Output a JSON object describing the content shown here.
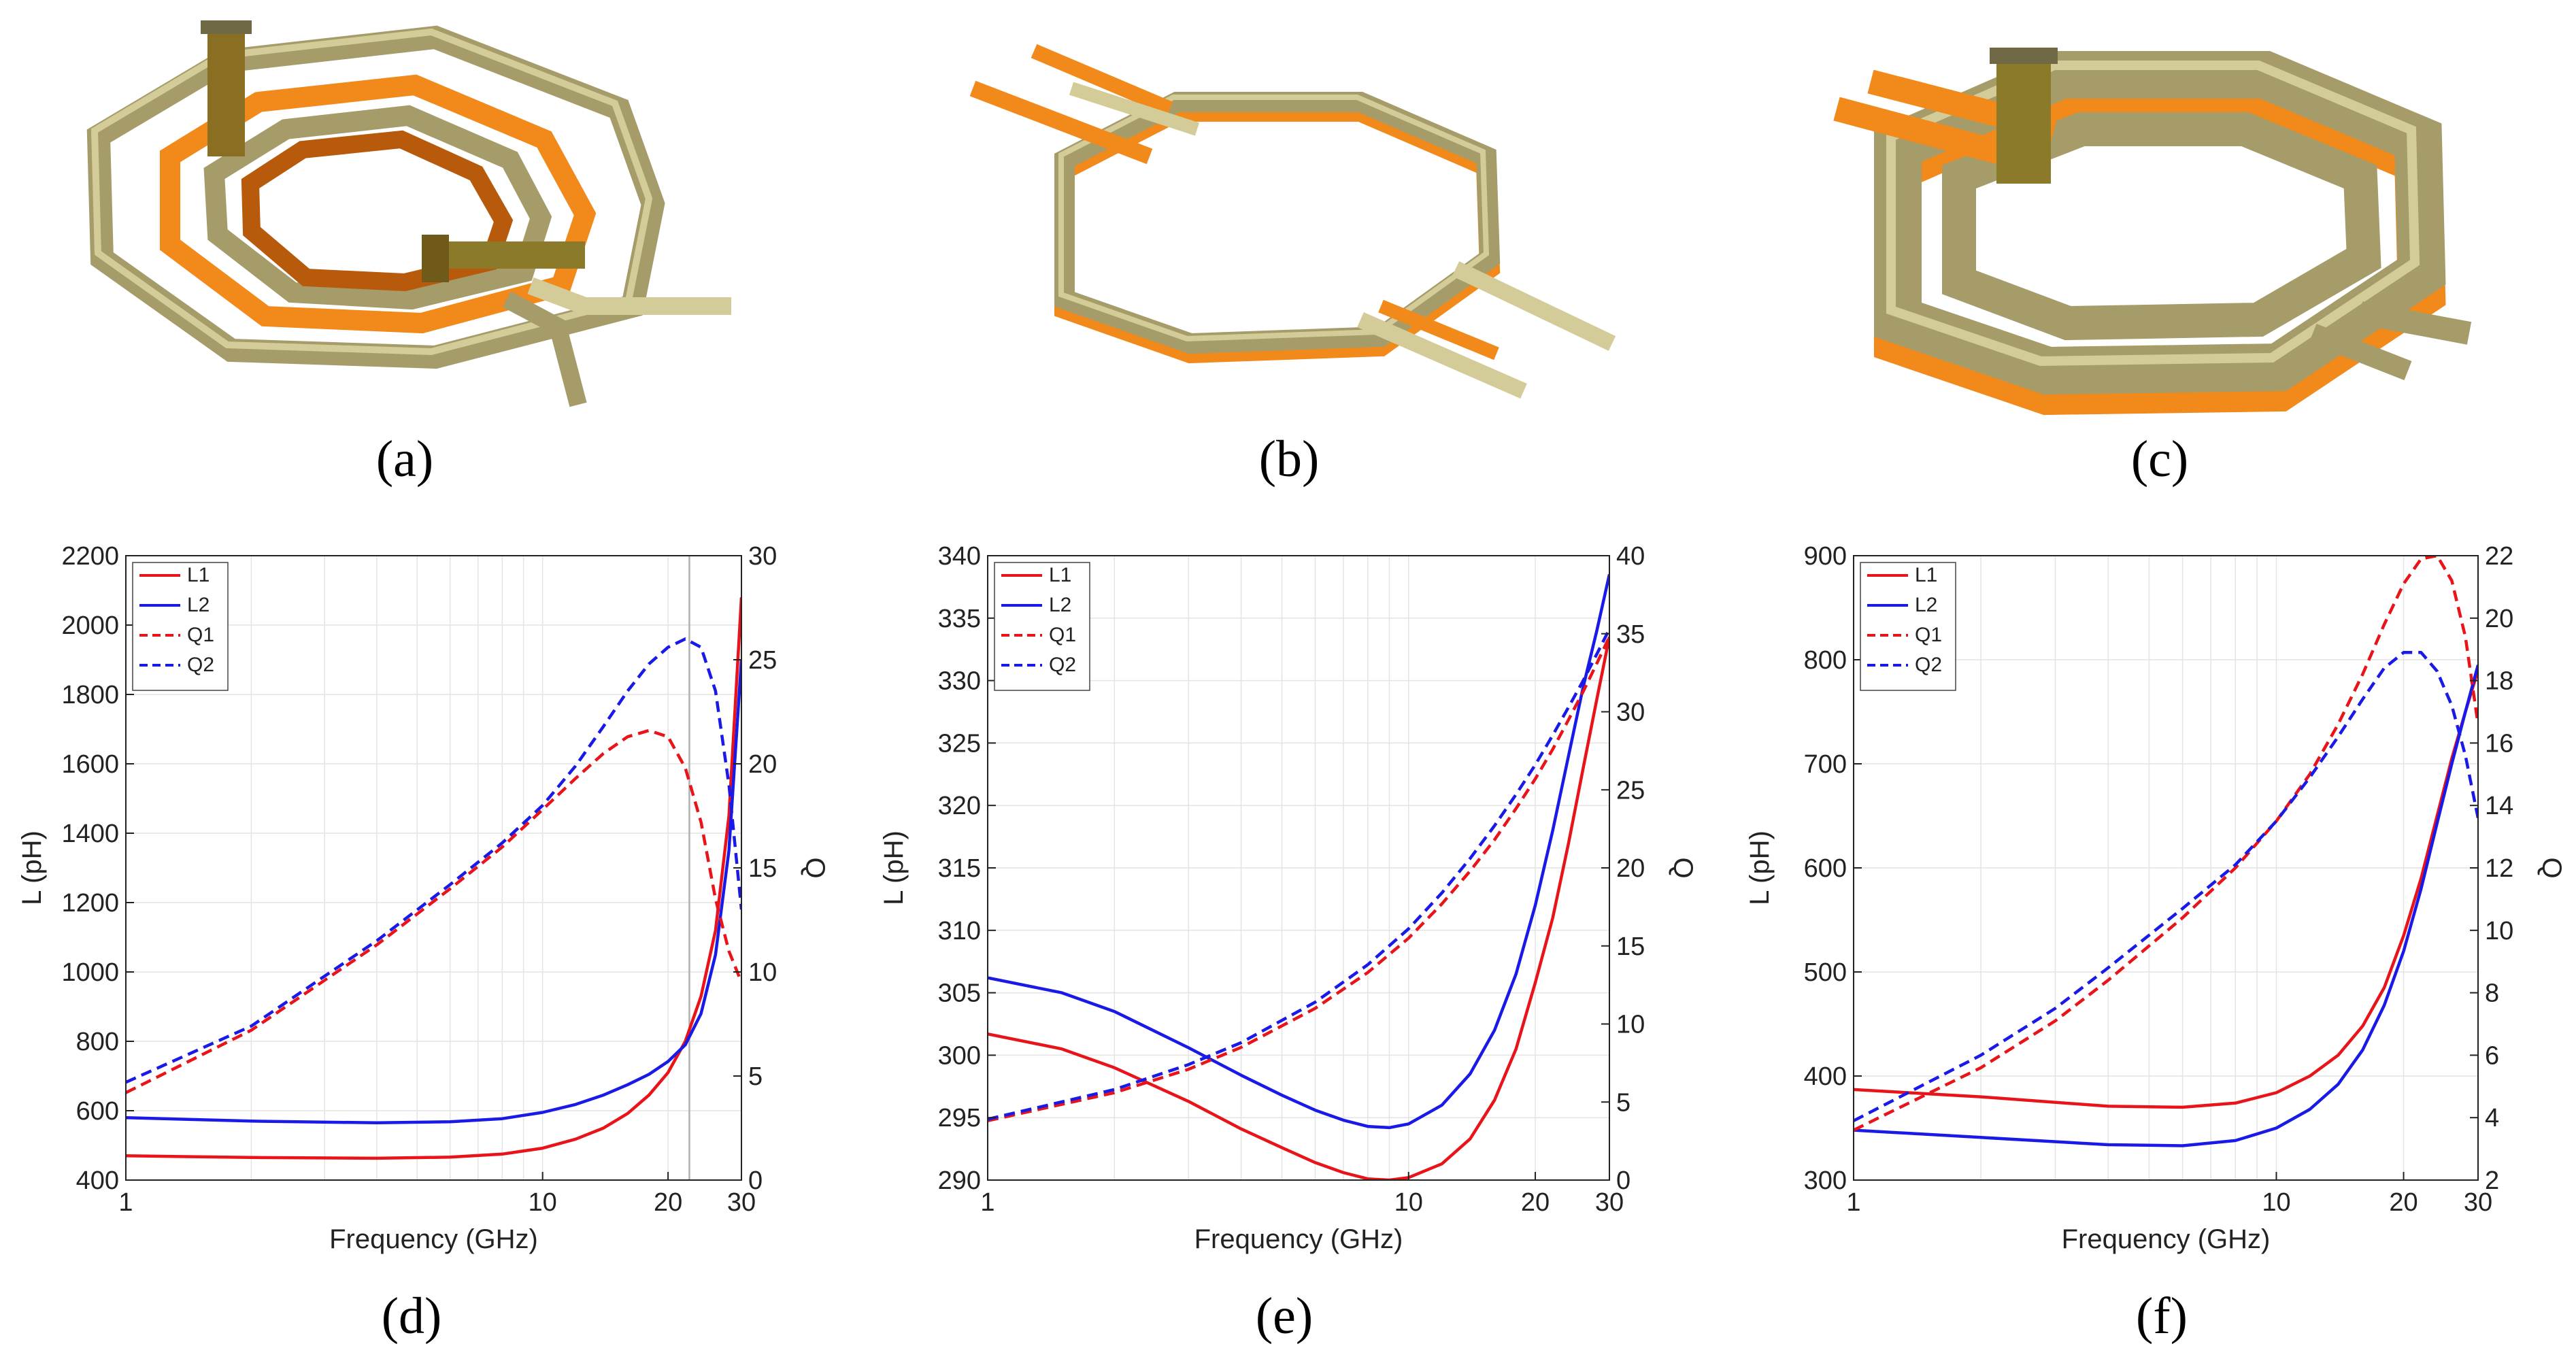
{
  "panels": {
    "a": "(a)",
    "b": "(b)",
    "c": "(c)",
    "d": "(d)",
    "e": "(e)",
    "f": "(f)"
  },
  "colors": {
    "gold": "#a59c6a",
    "gold_light": "#d4cc98",
    "gold_dark": "#6f6a45",
    "copper": "#f28a1b",
    "copper_dark": "#b85a0c",
    "red": "#e8141a",
    "blue": "#1a1ae8",
    "grid": "#e4e4e4",
    "refline": "#b0b0b0"
  },
  "chart_data": [
    {
      "id": "d",
      "type": "line",
      "xlabel": "Frequency (GHz)",
      "ylabel": "L (pH)",
      "y2label": "Q",
      "xscale": "log",
      "xlim": [
        1,
        30
      ],
      "xticks": [
        1,
        10,
        20,
        30
      ],
      "xtick_labels": [
        "1",
        "10",
        "20",
        "30"
      ],
      "ylim": [
        400,
        2200
      ],
      "yticks": [
        400,
        600,
        800,
        1000,
        1200,
        1400,
        1600,
        1800,
        2000,
        2200
      ],
      "y2lim": [
        0,
        30
      ],
      "y2ticks": [
        0,
        5,
        10,
        15,
        20,
        25,
        30
      ],
      "grid": true,
      "legend": "top-left",
      "vline_x": 22.5,
      "series": [
        {
          "name": "L1",
          "axis": "left",
          "style": "solid",
          "color": "#e8141a",
          "x": [
            1,
            2,
            4,
            6,
            8,
            10,
            12,
            14,
            16,
            18,
            20,
            22,
            24,
            26,
            28,
            30
          ],
          "y": [
            470,
            465,
            463,
            466,
            475,
            492,
            518,
            550,
            592,
            645,
            710,
            800,
            930,
            1120,
            1450,
            2080
          ]
        },
        {
          "name": "L2",
          "axis": "left",
          "style": "solid",
          "color": "#1a1ae8",
          "x": [
            1,
            2,
            4,
            6,
            8,
            10,
            12,
            14,
            16,
            18,
            20,
            22,
            24,
            26,
            28,
            30
          ],
          "y": [
            580,
            570,
            565,
            568,
            577,
            595,
            618,
            645,
            675,
            705,
            742,
            790,
            880,
            1050,
            1350,
            1900
          ]
        },
        {
          "name": "Q1",
          "axis": "right",
          "style": "dashed",
          "color": "#e8141a",
          "x": [
            1,
            2,
            3,
            4,
            6,
            8,
            10,
            12,
            14,
            16,
            18,
            20,
            22,
            24,
            26,
            28,
            30
          ],
          "y": [
            4.2,
            7.2,
            9.6,
            11.3,
            14,
            16,
            17.8,
            19.3,
            20.5,
            21.3,
            21.6,
            21.3,
            19.8,
            17.2,
            13.5,
            11,
            9.5
          ]
        },
        {
          "name": "Q2",
          "axis": "right",
          "style": "dashed",
          "color": "#1a1ae8",
          "x": [
            1,
            2,
            3,
            4,
            6,
            8,
            10,
            12,
            14,
            16,
            18,
            20,
            22,
            24,
            26,
            28,
            30
          ],
          "y": [
            4.7,
            7.4,
            9.8,
            11.5,
            14.2,
            16.2,
            18,
            19.9,
            21.8,
            23.5,
            24.8,
            25.6,
            26,
            25.6,
            23.5,
            19,
            13
          ]
        }
      ]
    },
    {
      "id": "e",
      "type": "line",
      "xlabel": "Frequency (GHz)",
      "ylabel": "L (pH)",
      "y2label": "Q",
      "xscale": "log",
      "xlim": [
        1,
        30
      ],
      "xticks": [
        1,
        10,
        20,
        30
      ],
      "xtick_labels": [
        "1",
        "10",
        "20",
        "30"
      ],
      "ylim": [
        290,
        340
      ],
      "yticks": [
        290,
        295,
        300,
        305,
        310,
        315,
        320,
        325,
        330,
        335,
        340
      ],
      "y2lim": [
        0,
        40
      ],
      "y2ticks": [
        0,
        5,
        10,
        15,
        20,
        25,
        30,
        35,
        40
      ],
      "grid": true,
      "legend": "top-left",
      "series": [
        {
          "name": "L1",
          "axis": "left",
          "style": "solid",
          "color": "#e8141a",
          "x": [
            1,
            1.5,
            2,
            3,
            4,
            5,
            6,
            7,
            8,
            9,
            10,
            12,
            14,
            16,
            18,
            20,
            22,
            24,
            26,
            28,
            30
          ],
          "y": [
            301.7,
            300.5,
            299.0,
            296.3,
            294.1,
            292.6,
            291.4,
            290.6,
            290.1,
            290.0,
            290.2,
            291.3,
            293.3,
            296.4,
            300.5,
            305.8,
            311,
            317,
            323,
            328.5,
            333.5
          ]
        },
        {
          "name": "L2",
          "axis": "left",
          "style": "solid",
          "color": "#1a1ae8",
          "x": [
            1,
            1.5,
            2,
            3,
            4,
            5,
            6,
            7,
            8,
            9,
            10,
            12,
            14,
            16,
            18,
            20,
            22,
            24,
            26,
            28,
            30
          ],
          "y": [
            306.2,
            305.0,
            303.5,
            300.6,
            298.4,
            296.8,
            295.6,
            294.8,
            294.3,
            294.2,
            294.5,
            296.0,
            298.5,
            302.0,
            306.5,
            312.0,
            318,
            324,
            329.5,
            334,
            338.5
          ]
        },
        {
          "name": "Q1",
          "axis": "right",
          "style": "dashed",
          "color": "#e8141a",
          "x": [
            1,
            2,
            3,
            4,
            6,
            8,
            10,
            12,
            14,
            16,
            18,
            20,
            22,
            24,
            26,
            28,
            30
          ],
          "y": [
            3.8,
            5.6,
            7.1,
            8.5,
            11,
            13.3,
            15.5,
            17.7,
            19.8,
            21.8,
            23.8,
            25.7,
            27.6,
            29.5,
            31.3,
            33.1,
            34.8
          ]
        },
        {
          "name": "Q2",
          "axis": "right",
          "style": "dashed",
          "color": "#1a1ae8",
          "x": [
            1,
            2,
            3,
            4,
            6,
            8,
            10,
            12,
            14,
            16,
            18,
            20,
            22,
            24,
            26,
            28,
            30
          ],
          "y": [
            3.9,
            5.8,
            7.4,
            8.8,
            11.4,
            13.8,
            16.1,
            18.4,
            20.6,
            22.7,
            24.7,
            26.6,
            28.5,
            30.3,
            32,
            33.7,
            35.3
          ]
        }
      ]
    },
    {
      "id": "f",
      "type": "line",
      "xlabel": "Frequency (GHz)",
      "ylabel": "L (pH)",
      "y2label": "Q",
      "xscale": "log",
      "xlim": [
        1,
        30
      ],
      "xticks": [
        1,
        10,
        20,
        30
      ],
      "xtick_labels": [
        "1",
        "10",
        "20",
        "30"
      ],
      "ylim": [
        300,
        900
      ],
      "yticks": [
        300,
        400,
        500,
        600,
        700,
        800,
        900
      ],
      "y2lim": [
        2,
        22
      ],
      "y2ticks": [
        2,
        4,
        6,
        8,
        10,
        12,
        14,
        16,
        18,
        20,
        22
      ],
      "grid": true,
      "legend": "top-left",
      "series": [
        {
          "name": "L1",
          "axis": "left",
          "style": "solid",
          "color": "#e8141a",
          "x": [
            1,
            2,
            4,
            6,
            8,
            10,
            12,
            14,
            16,
            18,
            20,
            22,
            24,
            26,
            28,
            30
          ],
          "y": [
            387,
            380,
            371,
            370,
            374,
            384,
            400,
            420,
            448,
            485,
            535,
            590,
            650,
            705,
            750,
            790
          ]
        },
        {
          "name": "L2",
          "axis": "left",
          "style": "solid",
          "color": "#1a1ae8",
          "x": [
            1,
            2,
            4,
            6,
            8,
            10,
            12,
            14,
            16,
            18,
            20,
            22,
            24,
            26,
            28,
            30
          ],
          "y": [
            348,
            341,
            334,
            333,
            338,
            350,
            368,
            392,
            425,
            468,
            520,
            580,
            643,
            700,
            750,
            795
          ]
        },
        {
          "name": "Q1",
          "axis": "right",
          "style": "dashed",
          "color": "#e8141a",
          "x": [
            1,
            2,
            3,
            4,
            6,
            8,
            10,
            12,
            14,
            16,
            18,
            20,
            22,
            24,
            26,
            28,
            30
          ],
          "y": [
            3.6,
            5.6,
            7.1,
            8.4,
            10.4,
            12,
            13.5,
            15,
            16.6,
            18.2,
            19.8,
            21.1,
            21.9,
            22,
            21.2,
            19.4,
            16.6
          ]
        },
        {
          "name": "Q2",
          "axis": "right",
          "style": "dashed",
          "color": "#1a1ae8",
          "x": [
            1,
            2,
            3,
            4,
            6,
            8,
            10,
            12,
            14,
            16,
            18,
            20,
            22,
            24,
            26,
            28,
            30
          ],
          "y": [
            3.9,
            6,
            7.5,
            8.8,
            10.7,
            12.1,
            13.5,
            14.9,
            16.2,
            17.4,
            18.4,
            18.9,
            18.9,
            18.3,
            17.2,
            15.6,
            13.6
          ]
        }
      ]
    }
  ]
}
